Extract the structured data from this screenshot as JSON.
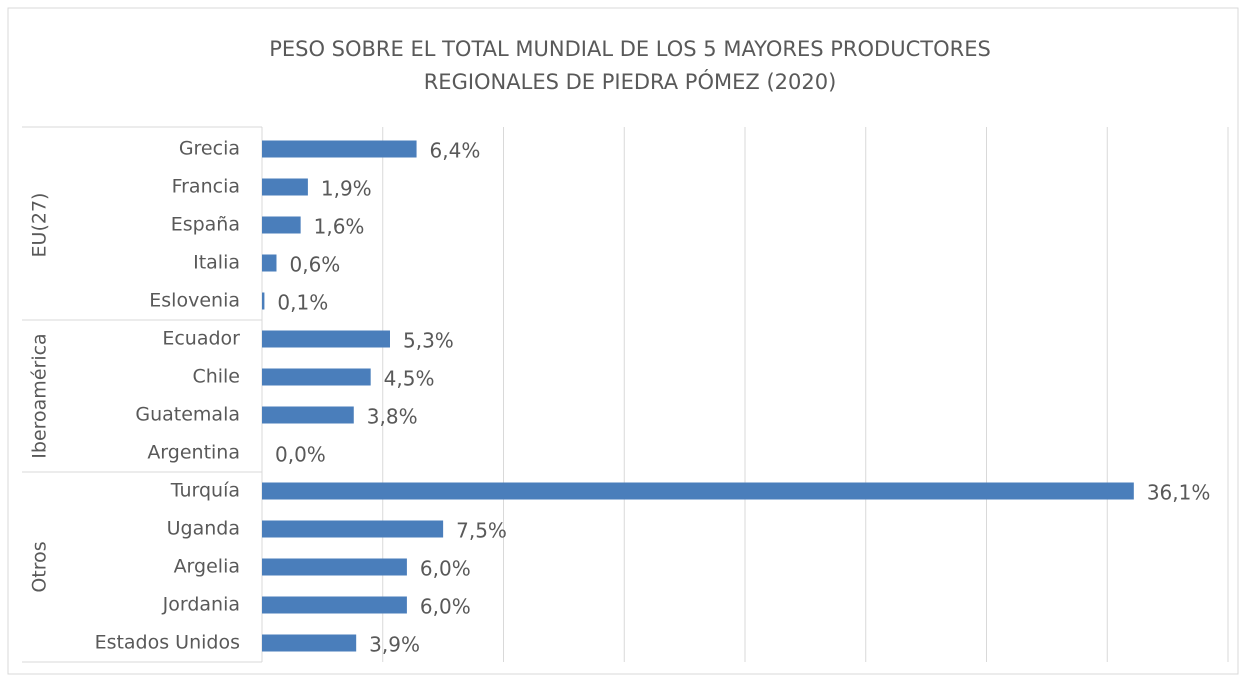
{
  "chart_data": {
    "type": "bar",
    "orientation": "horizontal",
    "title": [
      "PESO SOBRE EL TOTAL MUNDIAL DE LOS 5 MAYORES PRODUCTORES",
      "REGIONALES DE PIEDRA PÓMEZ (2020)"
    ],
    "groups": [
      {
        "name": "EU(27)",
        "size": 5
      },
      {
        "name": "Iberoamérica",
        "size": 4
      },
      {
        "name": "Otros",
        "size": 5
      }
    ],
    "categories": [
      "Grecia",
      "Francia",
      "España",
      "Italia",
      "Eslovenia",
      "Ecuador",
      "Chile",
      "Guatemala",
      "Argentina",
      "Turquía",
      "Uganda",
      "Argelia",
      "Jordania",
      "Estados Unidos"
    ],
    "values": [
      6.4,
      1.9,
      1.6,
      0.6,
      0.1,
      5.3,
      4.5,
      3.8,
      0.0,
      36.1,
      7.5,
      6.0,
      6.0,
      3.9
    ],
    "value_labels": [
      "6,4%",
      "1,9%",
      "1,6%",
      "0,6%",
      "0,1%",
      "5,3%",
      "4,5%",
      "3,8%",
      "0,0%",
      "36,1%",
      "7,5%",
      "6,0%",
      "6,0%",
      "3,9%"
    ],
    "color": "#4a7ebb",
    "xlim": [
      0,
      40
    ],
    "xticks": [
      0,
      5,
      10,
      15,
      20,
      25,
      30,
      35,
      40
    ],
    "grid": true
  }
}
